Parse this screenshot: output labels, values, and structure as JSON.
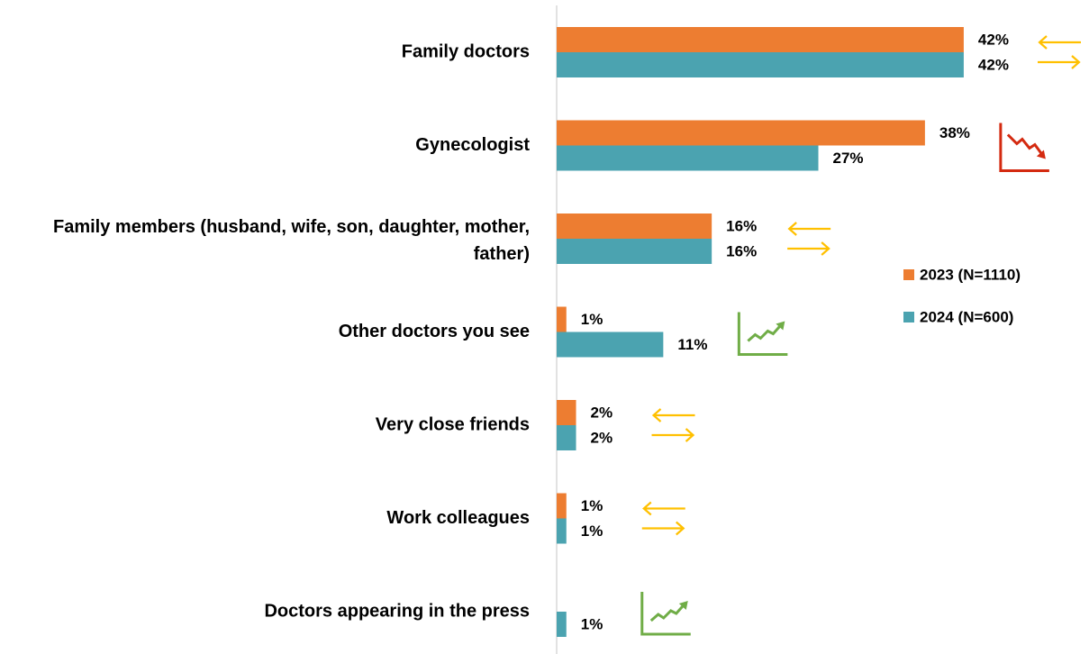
{
  "chart_data": {
    "type": "hbar",
    "categories": [
      "Family doctors",
      "Gynecologist",
      "Family members (husband, wife, son, daughter, mother, father)",
      "Other doctors you see",
      "Very close friends",
      "Work colleagues",
      "Doctors appearing in the press"
    ],
    "series": [
      {
        "name": "2023 (N=1110)",
        "color": "#ED7D31",
        "values": [
          42,
          38,
          16,
          1,
          2,
          1,
          null
        ],
        "value_labels": [
          "42%",
          "38%",
          "16%",
          "1%",
          "2%",
          "1%",
          null
        ]
      },
      {
        "name": "2024 (N=600)",
        "color": "#4BA3B0",
        "values": [
          42,
          27,
          16,
          11,
          2,
          1,
          1
        ],
        "value_labels": [
          "42%",
          "27%",
          "16%",
          "11%",
          "2%",
          "1%",
          "1%"
        ]
      }
    ],
    "xlim": [
      0,
      50
    ],
    "trend": [
      "same",
      "down",
      "same",
      "up",
      "same",
      "same",
      "up"
    ],
    "legend": "right"
  }
}
